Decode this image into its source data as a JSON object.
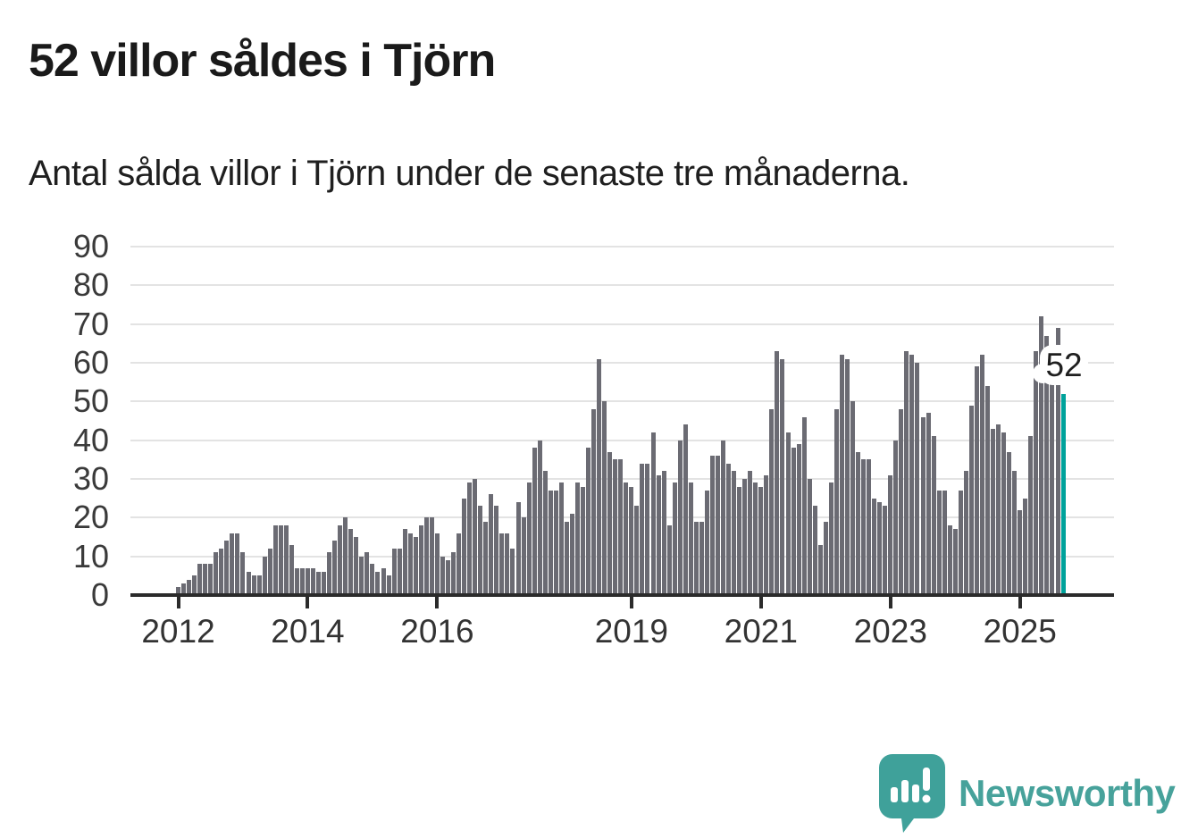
{
  "chart_data": {
    "type": "bar",
    "title": "52 villor såldes i Tjörn",
    "subtitle": "Antal sålda villor i Tjörn under de senaste tre månaderna.",
    "frequency": "monthly",
    "x_start": "2012-01",
    "x_end": "2025-09",
    "values": [
      2,
      3,
      4,
      5,
      8,
      8,
      8,
      11,
      12,
      14,
      16,
      16,
      11,
      6,
      5,
      5,
      10,
      12,
      18,
      18,
      18,
      13,
      7,
      7,
      7,
      7,
      6,
      6,
      11,
      14,
      18,
      20,
      17,
      15,
      10,
      11,
      8,
      6,
      7,
      5,
      12,
      12,
      17,
      16,
      15,
      18,
      20,
      20,
      16,
      10,
      9,
      11,
      16,
      25,
      29,
      30,
      23,
      19,
      26,
      23,
      16,
      16,
      12,
      24,
      20,
      29,
      38,
      40,
      32,
      27,
      27,
      29,
      19,
      21,
      29,
      28,
      38,
      48,
      61,
      50,
      37,
      35,
      35,
      29,
      28,
      23,
      34,
      34,
      42,
      31,
      32,
      18,
      29,
      40,
      44,
      29,
      19,
      19,
      27,
      36,
      36,
      40,
      34,
      32,
      28,
      30,
      32,
      29,
      28,
      31,
      48,
      63,
      61,
      42,
      38,
      39,
      46,
      30,
      23,
      13,
      19,
      29,
      48,
      62,
      61,
      50,
      37,
      35,
      35,
      25,
      24,
      23,
      31,
      40,
      48,
      63,
      62,
      60,
      46,
      47,
      41,
      27,
      27,
      18,
      17,
      27,
      32,
      49,
      59,
      62,
      54,
      43,
      44,
      42,
      37,
      32,
      22,
      25,
      41,
      63,
      72,
      67,
      58,
      69,
      52
    ],
    "ylim": [
      0,
      90
    ],
    "yticks": [
      0,
      10,
      20,
      30,
      40,
      50,
      60,
      70,
      80,
      90
    ],
    "xticks": [
      {
        "label": "2012",
        "month_index": 0
      },
      {
        "label": "2014",
        "month_index": 24
      },
      {
        "label": "2016",
        "month_index": 48
      },
      {
        "label": "2019",
        "month_index": 84
      },
      {
        "label": "2021",
        "month_index": 108
      },
      {
        "label": "2023",
        "month_index": 132
      },
      {
        "label": "2025",
        "month_index": 156
      }
    ],
    "grid": true,
    "bar_color": "#6b6b73",
    "highlight": {
      "index": 164,
      "value": 52,
      "label": "52",
      "color": "#00a29b"
    }
  },
  "annotation": {
    "label": "52"
  },
  "branding": {
    "logo_text": "Newsworthy",
    "color": "#47a29b"
  }
}
